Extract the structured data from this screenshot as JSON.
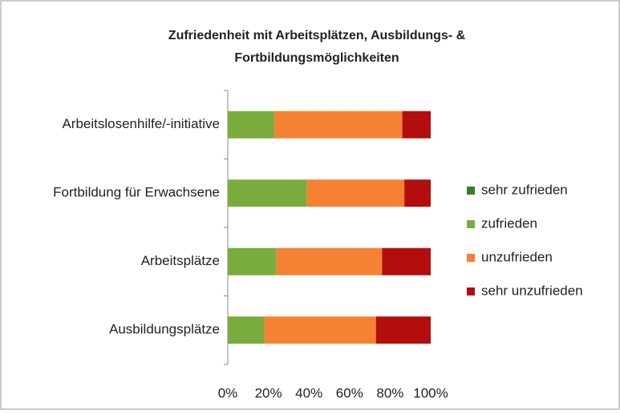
{
  "chart_data": {
    "type": "stacked-barh",
    "title": [
      "Zufriedenheit mit Arbeitsplätzen, Ausbildungs- &",
      "Fortbildungsmöglichkeiten"
    ],
    "categories": [
      "Arbeitslosenhilfe/-initiative",
      "Fortbildung für Erwachsene",
      "Arbeitsplätze",
      "Ausbildungsplätze"
    ],
    "series": [
      {
        "name": "sehr zufrieden",
        "color": "#3f7a2a",
        "values": [
          0,
          0,
          0,
          0
        ]
      },
      {
        "name": "zufrieden",
        "color": "#79ac3d",
        "values": [
          23,
          39,
          24,
          18
        ]
      },
      {
        "name": "unzufrieden",
        "color": "#f58233",
        "values": [
          63,
          48,
          52,
          55
        ]
      },
      {
        "name": "sehr unzufrieden",
        "color": "#b30d0d",
        "values": [
          14,
          13,
          24,
          27
        ]
      }
    ],
    "xlim": [
      0,
      100
    ],
    "xticks": [
      {
        "value": 0,
        "label": "0%"
      },
      {
        "value": 20,
        "label": "20%"
      },
      {
        "value": 40,
        "label": "40%"
      },
      {
        "value": 60,
        "label": "60%"
      },
      {
        "value": 80,
        "label": "80%"
      },
      {
        "value": 100,
        "label": "100%"
      }
    ],
    "legend": "right"
  }
}
